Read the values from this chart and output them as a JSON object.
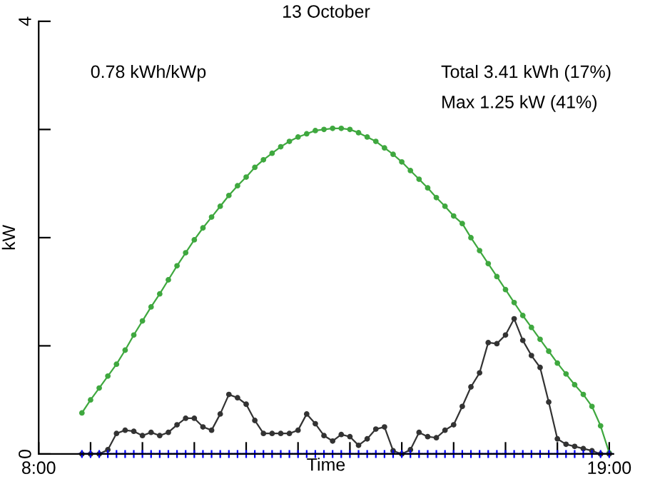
{
  "chart_data": {
    "type": "line",
    "title": "13 October",
    "xlabel": "Time",
    "ylabel": "kW",
    "annotations": [
      "0.78 kWh/kWp",
      "Total 3.41 kWh (17%)",
      "Max 1.25 kW (41%)"
    ],
    "x": [
      8.8333,
      9.0,
      9.1667,
      9.3333,
      9.5,
      9.6667,
      9.8333,
      10.0,
      10.1667,
      10.3333,
      10.5,
      10.6667,
      10.8333,
      11.0,
      11.1667,
      11.3333,
      11.5,
      11.6667,
      11.8333,
      12.0,
      12.1667,
      12.3333,
      12.5,
      12.6667,
      12.8333,
      13.0,
      13.1667,
      13.3333,
      13.5,
      13.6667,
      13.8333,
      14.0,
      14.1667,
      14.3333,
      14.5,
      14.6667,
      14.8333,
      15.0,
      15.1667,
      15.3333,
      15.5,
      15.6667,
      15.8333,
      16.0,
      16.1667,
      16.3333,
      16.5,
      16.6667,
      16.8333,
      17.0,
      17.1667,
      17.3333,
      17.5,
      17.6667,
      17.8333,
      18.0,
      18.1667,
      18.3333,
      18.5,
      18.6667,
      18.8333,
      19.0
    ],
    "series": [
      {
        "color": "#3fa83f",
        "marker": "circle",
        "values": [
          0.38,
          0.5,
          0.61,
          0.72,
          0.83,
          0.96,
          1.1,
          1.23,
          1.36,
          1.48,
          1.61,
          1.74,
          1.86,
          1.98,
          2.09,
          2.19,
          2.29,
          2.39,
          2.48,
          2.56,
          2.65,
          2.72,
          2.78,
          2.84,
          2.89,
          2.93,
          2.96,
          2.99,
          3.0,
          3.01,
          3.01,
          3.0,
          2.97,
          2.93,
          2.89,
          2.83,
          2.77,
          2.7,
          2.62,
          2.54,
          2.46,
          2.37,
          2.29,
          2.2,
          2.13,
          2.0,
          1.88,
          1.76,
          1.64,
          1.52,
          1.4,
          1.28,
          1.17,
          1.06,
          0.95,
          0.84,
          0.74,
          0.64,
          0.55,
          0.44,
          0.26,
          0.01
        ]
      },
      {
        "color": "#333333",
        "marker": "circle",
        "values": [
          0,
          0,
          0,
          0.04,
          0.19,
          0.22,
          0.21,
          0.17,
          0.2,
          0.17,
          0.2,
          0.27,
          0.33,
          0.33,
          0.25,
          0.22,
          0.37,
          0.55,
          0.52,
          0.46,
          0.31,
          0.19,
          0.19,
          0.19,
          0.19,
          0.22,
          0.37,
          0.28,
          0.17,
          0.12,
          0.18,
          0.16,
          0.08,
          0.14,
          0.23,
          0.25,
          0.03,
          0.0,
          0.04,
          0.2,
          0.16,
          0.15,
          0.22,
          0.27,
          0.44,
          0.62,
          0.75,
          1.03,
          1.02,
          1.1,
          1.25,
          1.05,
          0.91,
          0.8,
          0.48,
          0.14,
          0.09,
          0.07,
          0.05,
          0.03,
          0.0,
          0.0
        ]
      },
      {
        "color": "#0000ff",
        "marker": "cross",
        "values": [
          0,
          0,
          0,
          0,
          0,
          0,
          0,
          0,
          0,
          0,
          0,
          0,
          0,
          0,
          0,
          0,
          0,
          0,
          0,
          0,
          0,
          0,
          0,
          0,
          0,
          0,
          0,
          0,
          0,
          0,
          0,
          0,
          0,
          0,
          0,
          0,
          0,
          0,
          0,
          0,
          0,
          0,
          0,
          0,
          0,
          0,
          0,
          0,
          0,
          0,
          0,
          0,
          0,
          0,
          0,
          0,
          0,
          0,
          0,
          0,
          0,
          0
        ]
      }
    ],
    "xlim": [
      8,
      19.08
    ],
    "ylim": [
      0,
      4
    ],
    "xticks": [
      {
        "value": 8,
        "label": "8:00"
      },
      {
        "value": 9,
        "label": null
      },
      {
        "value": 10,
        "label": null
      },
      {
        "value": 11,
        "label": null
      },
      {
        "value": 12,
        "label": null
      },
      {
        "value": 13,
        "label": null
      },
      {
        "value": 14,
        "label": null
      },
      {
        "value": 15,
        "label": null
      },
      {
        "value": 16,
        "label": null
      },
      {
        "value": 17,
        "label": null
      },
      {
        "value": 18,
        "label": null
      },
      {
        "value": 19,
        "label": "19:00"
      }
    ],
    "yticks": [
      0,
      {
        "value": 1,
        "label": null
      },
      {
        "value": 2,
        "label": null
      },
      {
        "value": 3,
        "label": null
      },
      4
    ],
    "grid": false,
    "legend": false,
    "line_style": "solid"
  }
}
